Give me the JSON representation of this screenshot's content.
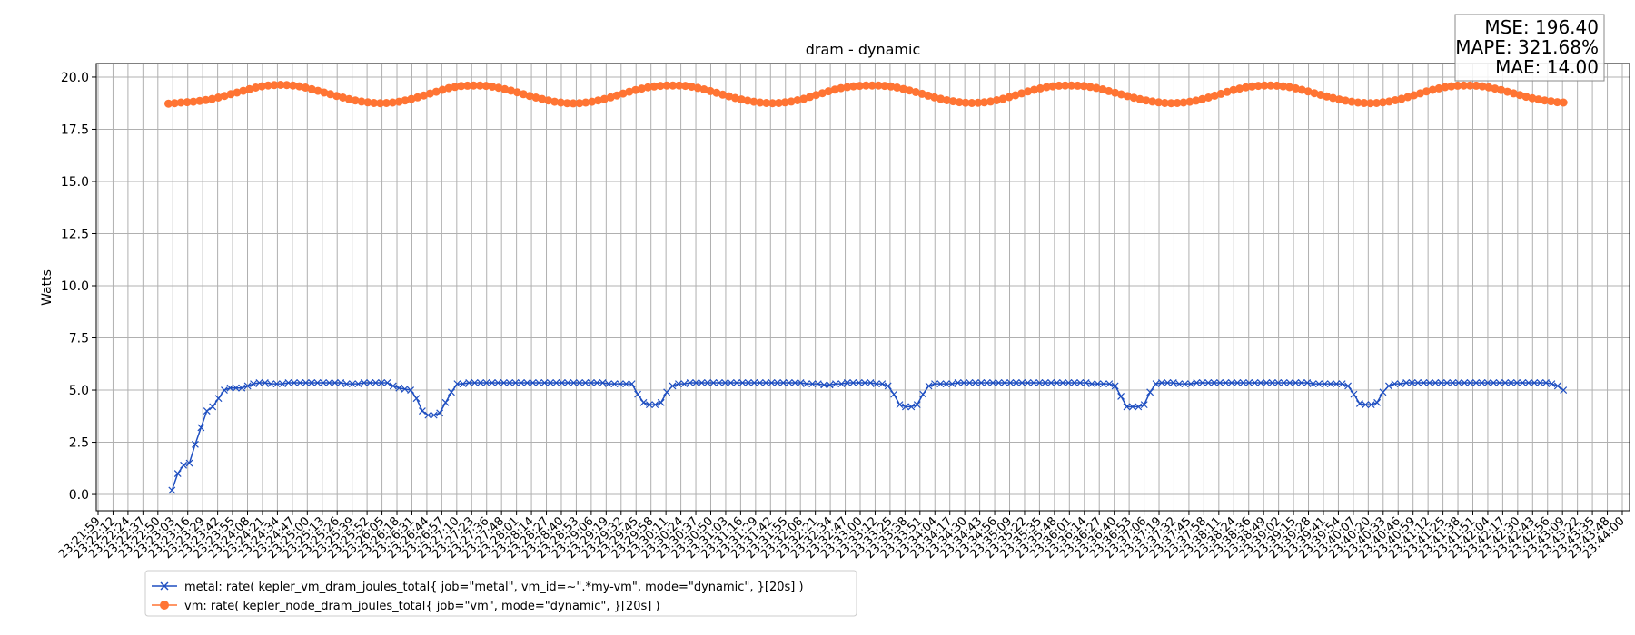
{
  "chart_data": {
    "type": "line",
    "title": "dram - dynamic",
    "xlabel": "",
    "ylabel": "Watts",
    "ylim": [
      -0.78,
      20.65
    ],
    "yticks": [
      0.0,
      2.5,
      5.0,
      7.5,
      10.0,
      12.5,
      15.0,
      17.5,
      20.0
    ],
    "grid": true,
    "legend_position": "bottom-left",
    "x_tick_labels": [
      "23:21:59",
      "23:22:12",
      "23:22:24",
      "23:22:37",
      "23:22:50",
      "23:23:03",
      "23:23:16",
      "23:23:29",
      "23:23:42",
      "23:23:55",
      "23:24:08",
      "23:24:21",
      "23:24:34",
      "23:24:47",
      "23:25:00",
      "23:25:13",
      "23:25:26",
      "23:25:39",
      "23:25:52",
      "23:26:05",
      "23:26:18",
      "23:26:31",
      "23:26:44",
      "23:26:57",
      "23:27:10",
      "23:27:23",
      "23:27:36",
      "23:27:48",
      "23:28:01",
      "23:28:14",
      "23:28:27",
      "23:28:40",
      "23:28:53",
      "23:29:06",
      "23:29:19",
      "23:29:32",
      "23:29:45",
      "23:29:58",
      "23:30:11",
      "23:30:24",
      "23:30:37",
      "23:30:50",
      "23:31:03",
      "23:31:16",
      "23:31:29",
      "23:31:42",
      "23:31:55",
      "23:32:08",
      "23:32:21",
      "23:32:34",
      "23:32:47",
      "23:33:00",
      "23:33:12",
      "23:33:25",
      "23:33:38",
      "23:33:51",
      "23:34:04",
      "23:34:17",
      "23:34:30",
      "23:34:43",
      "23:34:56",
      "23:35:09",
      "23:35:22",
      "23:35:35",
      "23:35:48",
      "23:36:01",
      "23:36:14",
      "23:36:27",
      "23:36:40",
      "23:36:53",
      "23:37:06",
      "23:37:19",
      "23:37:32",
      "23:37:45",
      "23:37:58",
      "23:38:11",
      "23:38:24",
      "23:38:36",
      "23:38:49",
      "23:39:02",
      "23:39:15",
      "23:39:28",
      "23:39:41",
      "23:39:54",
      "23:40:07",
      "23:40:20",
      "23:40:33",
      "23:40:46",
      "23:40:59",
      "23:41:12",
      "23:41:25",
      "23:41:38",
      "23:41:51",
      "23:42:04",
      "23:42:17",
      "23:42:30",
      "23:42:43",
      "23:42:56",
      "23:43:09",
      "23:43:22",
      "23:43:35",
      "23:43:48",
      "23:44:00"
    ],
    "x_tick_positions_idx_note": "",
    "series": [
      {
        "name": "metal: rate( kepler_vm_dram_joules_total{ job=\"metal\", vm_id=~\".*my-vm\", mode=\"dynamic\", }[20s] )",
        "color": "#1f4fc1",
        "marker": "x",
        "x_range": [
          "23:23:03",
          "23:43:09"
        ],
        "values": [
          0.2,
          1.0,
          1.4,
          1.5,
          2.4,
          3.2,
          4.0,
          4.2,
          4.6,
          5.0,
          5.1,
          5.1,
          5.1,
          5.2,
          5.3,
          5.35,
          5.35,
          5.3,
          5.3,
          5.3,
          5.35,
          5.35,
          5.35,
          5.35,
          5.35,
          5.35,
          5.35,
          5.35,
          5.35,
          5.35,
          5.3,
          5.3,
          5.3,
          5.35,
          5.35,
          5.35,
          5.35,
          5.35,
          5.2,
          5.1,
          5.05,
          5.0,
          4.6,
          4.0,
          3.8,
          3.8,
          3.9,
          4.4,
          4.9,
          5.3,
          5.3,
          5.35,
          5.35,
          5.35,
          5.35,
          5.35,
          5.35,
          5.35,
          5.35,
          5.35,
          5.35,
          5.35,
          5.35,
          5.35,
          5.35,
          5.35,
          5.35,
          5.35,
          5.35,
          5.35,
          5.35,
          5.35,
          5.35,
          5.35,
          5.35,
          5.3,
          5.3,
          5.3,
          5.3,
          5.3,
          4.8,
          4.4,
          4.3,
          4.3,
          4.4,
          4.9,
          5.2,
          5.3,
          5.3,
          5.35,
          5.35,
          5.35,
          5.35,
          5.35,
          5.35,
          5.35,
          5.35,
          5.35,
          5.35,
          5.35,
          5.35,
          5.35,
          5.35,
          5.35,
          5.35,
          5.35,
          5.35,
          5.35,
          5.35,
          5.3,
          5.3,
          5.3,
          5.25,
          5.25,
          5.3,
          5.3,
          5.35,
          5.35,
          5.35,
          5.35,
          5.35,
          5.3,
          5.3,
          5.2,
          4.8,
          4.3,
          4.2,
          4.2,
          4.3,
          4.8,
          5.2,
          5.3,
          5.3,
          5.3,
          5.3,
          5.35,
          5.35,
          5.35,
          5.35,
          5.35,
          5.35,
          5.35,
          5.35,
          5.35,
          5.35,
          5.35,
          5.35,
          5.35,
          5.35,
          5.35,
          5.35,
          5.35,
          5.35,
          5.35,
          5.35,
          5.35,
          5.35,
          5.35,
          5.3,
          5.3,
          5.3,
          5.3,
          5.2,
          4.7,
          4.2,
          4.2,
          4.2,
          4.3,
          4.9,
          5.3,
          5.35,
          5.35,
          5.35,
          5.3,
          5.3,
          5.3,
          5.35,
          5.35,
          5.35,
          5.35,
          5.35,
          5.35,
          5.35,
          5.35,
          5.35,
          5.35,
          5.35,
          5.35,
          5.35,
          5.35,
          5.35,
          5.35,
          5.35,
          5.35,
          5.35,
          5.35,
          5.3,
          5.3,
          5.3,
          5.3,
          5.3,
          5.3,
          5.2,
          4.8,
          4.35,
          4.3,
          4.3,
          4.4,
          4.9,
          5.2,
          5.3,
          5.3,
          5.35,
          5.35,
          5.35,
          5.35,
          5.35,
          5.35,
          5.35,
          5.35,
          5.35,
          5.35,
          5.35,
          5.35,
          5.35,
          5.35,
          5.35,
          5.35,
          5.35,
          5.35,
          5.35,
          5.35,
          5.35,
          5.35,
          5.35,
          5.35,
          5.35,
          5.3,
          5.2,
          5.0
        ]
      },
      {
        "name": "vm: rate( kepler_node_dram_joules_total{ job=\"vm\", mode=\"dynamic\", }[20s] )",
        "color": "#ff7433",
        "marker": "o",
        "x_range": [
          "23:23:00",
          "23:43:09"
        ],
        "values": [
          18.73,
          18.75,
          18.78,
          18.8,
          18.82,
          18.86,
          18.9,
          18.95,
          19.02,
          19.1,
          19.18,
          19.26,
          19.34,
          19.42,
          19.5,
          19.56,
          19.6,
          19.62,
          19.63,
          19.62,
          19.6,
          19.56,
          19.5,
          19.42,
          19.34,
          19.26,
          19.18,
          19.1,
          19.02,
          18.94,
          18.88,
          18.83,
          18.79,
          18.76,
          18.75,
          18.76,
          18.78,
          18.82,
          18.88,
          18.95,
          19.03,
          19.12,
          19.21,
          19.3,
          19.39,
          19.47,
          19.53,
          19.57,
          19.59,
          19.6,
          19.6,
          19.58,
          19.54,
          19.49,
          19.42,
          19.35,
          19.27,
          19.18,
          19.1,
          19.02,
          18.95,
          18.88,
          18.82,
          18.78,
          18.75,
          18.74,
          18.75,
          18.78,
          18.82,
          18.88,
          18.95,
          19.03,
          19.12,
          19.21,
          19.3,
          19.38,
          19.45,
          19.51,
          19.55,
          19.58,
          19.6,
          19.6,
          19.6,
          19.58,
          19.54,
          19.48,
          19.41,
          19.33,
          19.25,
          19.16,
          19.08,
          19.0,
          18.93,
          18.87,
          18.82,
          18.78,
          18.76,
          18.75,
          18.76,
          18.79,
          18.83,
          18.89,
          18.96,
          19.05,
          19.14,
          19.23,
          19.32,
          19.4,
          19.47,
          19.52,
          19.56,
          19.58,
          19.6,
          19.6,
          19.6,
          19.58,
          19.55,
          19.5,
          19.43,
          19.36,
          19.28,
          19.2,
          19.11,
          19.03,
          18.96,
          18.89,
          18.84,
          18.8,
          18.77,
          18.76,
          18.77,
          18.79,
          18.83,
          18.89,
          18.96,
          19.04,
          19.13,
          19.22,
          19.31,
          19.39,
          19.46,
          19.52,
          19.56,
          19.59,
          19.6,
          19.6,
          19.59,
          19.57,
          19.53,
          19.48,
          19.41,
          19.33,
          19.25,
          19.17,
          19.09,
          19.01,
          18.94,
          18.88,
          18.83,
          18.79,
          18.76,
          18.75,
          18.76,
          18.78,
          18.82,
          18.87,
          18.94,
          19.02,
          19.11,
          19.2,
          19.29,
          19.38,
          19.45,
          19.51,
          19.55,
          19.58,
          19.6,
          19.6,
          19.59,
          19.56,
          19.52,
          19.46,
          19.39,
          19.31,
          19.23,
          19.15,
          19.07,
          19.0,
          18.93,
          18.87,
          18.82,
          18.78,
          18.76,
          18.75,
          18.76,
          18.79,
          18.83,
          18.89,
          18.96,
          19.04,
          19.13,
          19.22,
          19.31,
          19.39,
          19.46,
          19.52,
          19.56,
          19.59,
          19.6,
          19.6,
          19.59,
          19.56,
          19.51,
          19.45,
          19.38,
          19.3,
          19.22,
          19.14,
          19.06,
          18.99,
          18.93,
          18.88,
          18.84,
          18.8,
          18.78
        ]
      }
    ],
    "annotation": [
      "MSE: 196.40",
      "MAPE: 321.68%",
      "MAE: 14.00"
    ]
  }
}
